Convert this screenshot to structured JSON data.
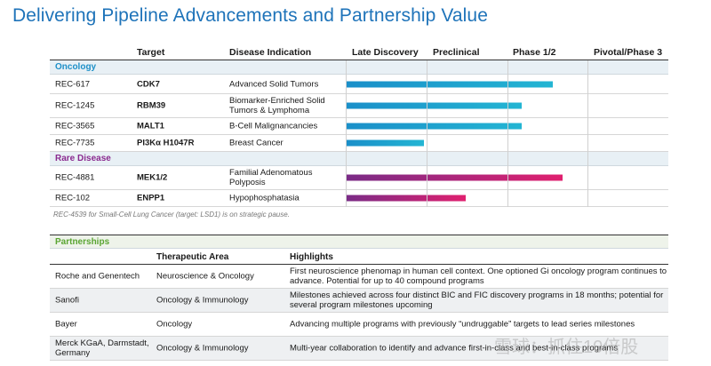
{
  "title": "Delivering Pipeline Advancements and Partnership Value",
  "colors": {
    "title": "#1e73b9",
    "oncology_section": "#1e90c8",
    "oncology_bar_start": "#1a8fc9",
    "oncology_bar_end": "#23b5d3",
    "rare_section": "#8a2a8f",
    "rare_bar_start": "#7a2b86",
    "rare_bar_end": "#e0206f",
    "partnerships_section": "#5aa532"
  },
  "pipeline": {
    "headers": {
      "target": "Target",
      "indication": "Disease Indication",
      "phase_late": "Late Discovery",
      "phase_pre": "Preclinical",
      "phase_1_2": "Phase 1/2",
      "phase_pivotal": "Pivotal/Phase 3"
    },
    "oncology": {
      "label": "Oncology",
      "rows": [
        {
          "code": "REC-617",
          "target": "CDK7",
          "indication": "Advanced Solid Tumors",
          "progress": 0.64
        },
        {
          "code": "REC-1245",
          "target": "RBM39",
          "indication": "Biomarker-Enriched Solid Tumors & Lymphoma",
          "progress": 0.545
        },
        {
          "code": "REC-3565",
          "target": "MALT1",
          "indication": "B-Cell Malignancancies",
          "progress": 0.545
        },
        {
          "code": "REC-7735",
          "target": "PI3Kα H1047R",
          "indication": "Breast Cancer",
          "progress": 0.24
        }
      ]
    },
    "rare": {
      "label": "Rare Disease",
      "rows": [
        {
          "code": "REC-4881",
          "target": "MEK1/2",
          "indication": "Familial Adenomatous Polyposis",
          "progress": 0.67
        },
        {
          "code": "REC-102",
          "target": "ENPP1",
          "indication": "Hypophosphatasia",
          "progress": 0.37
        }
      ]
    },
    "note": "REC-4539 for Small-Cell Lung Cancer (target: LSD1) is on strategic pause."
  },
  "partnerships": {
    "label": "Partnerships",
    "headers": {
      "area": "Therapeutic Area",
      "highlights": "Highlights"
    },
    "rows": [
      {
        "partner": "Roche and Genentech",
        "area": "Neuroscience & Oncology",
        "highlights": "First neuroscience phenomap in human cell context. One optioned Gi oncology program continues to advance. Potential for up to 40 compound programs"
      },
      {
        "partner": "Sanofi",
        "area": "Oncology & Immunology",
        "highlights": "Milestones achieved across four distinct BIC and FIC discovery programs in 18 months; potential for several program milestones upcoming"
      },
      {
        "partner": "Bayer",
        "area": "Oncology",
        "highlights": "Advancing multiple programs with previously “undruggable” targets to lead series milestones"
      },
      {
        "partner": "Merck KGaA, Darmstadt, Germany",
        "area": "Oncology & Immunology",
        "highlights": "Multi-year collaboration to identify and advance first-in-class and best-in-class programs"
      }
    ]
  },
  "watermark": "雪球：抓住10倍股"
}
